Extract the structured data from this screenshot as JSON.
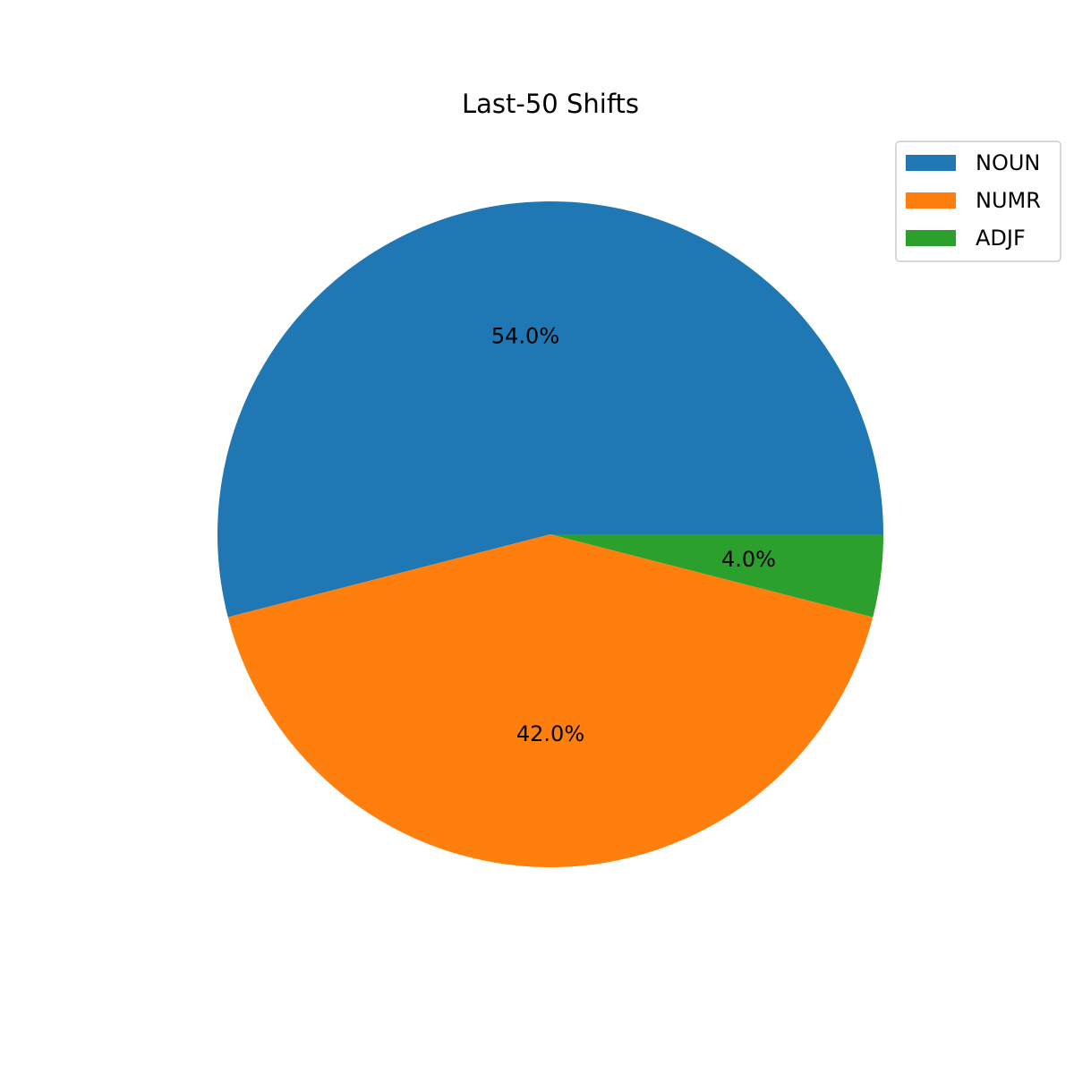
{
  "chart_data": {
    "type": "pie",
    "title": "Last-50 Shifts",
    "categories": [
      "NOUN",
      "NUMR",
      "ADJF"
    ],
    "values": [
      54.0,
      42.0,
      4.0
    ],
    "labels": [
      "54.0%",
      "42.0%",
      "4.0%"
    ],
    "colors": [
      "#1f77b4",
      "#ff7f0e",
      "#2ca02c"
    ],
    "start_angle_deg": 0,
    "direction": "counterclockwise",
    "legend_position": "upper-right"
  }
}
